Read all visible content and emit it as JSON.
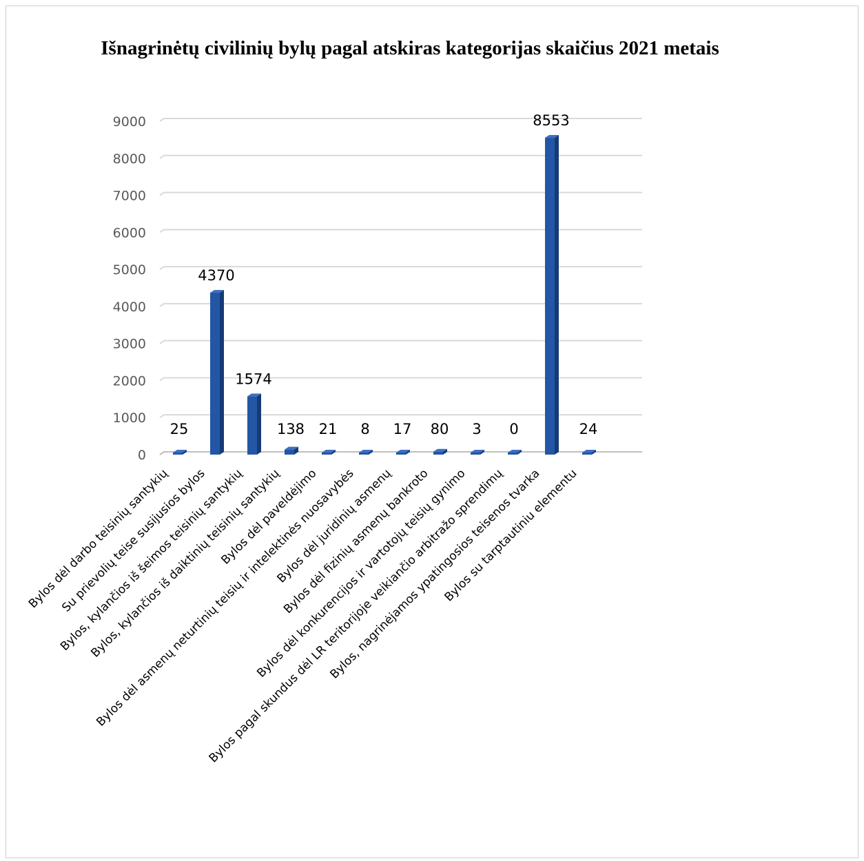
{
  "chart_data": {
    "type": "bar",
    "title": "Išnagrinėtų civilinių bylų pagal atskiras kategorijas skaičius 2021 metais",
    "categories": [
      "Bylos dėl darbo teisinių santykių",
      "Su prievolių teise susijusios bylos",
      "Bylos, kylančios iš šeimos teisinių santykių",
      "Bylos, kylančios iš daiktinių teisinių santykių",
      "Bylos dėl paveldėjimo",
      "Bylos dėl asmenų neturtinių teisių ir intelektinės nuosavybės",
      "Bylos dėl juridinių asmenų",
      "Bylos dėl fizinių asmenų bankroto",
      "Bylos dėl konkurencijos ir vartotojų teisių gynimo",
      "Bylos pagal skundus dėl LR teritorijoje veikiančio arbitražo sprendimų",
      "Bylos, nagrinėjamos ypatingosios teisenos tvarka",
      "Bylos su tarptautiniu elementu"
    ],
    "values": [
      25,
      4370,
      1574,
      138,
      21,
      8,
      17,
      80,
      3,
      0,
      8553,
      24
    ],
    "ylim": [
      0,
      9000
    ],
    "yticks": [
      0,
      1000,
      2000,
      3000,
      4000,
      5000,
      6000,
      7000,
      8000,
      9000
    ],
    "grid": true,
    "legend": "none",
    "colors": {
      "bar_front": "#2456a6",
      "bar_side": "#163a75",
      "bar_top": "#3d6fc4",
      "grid": "#d9d9d9",
      "axis": "#bfbfbf"
    }
  }
}
